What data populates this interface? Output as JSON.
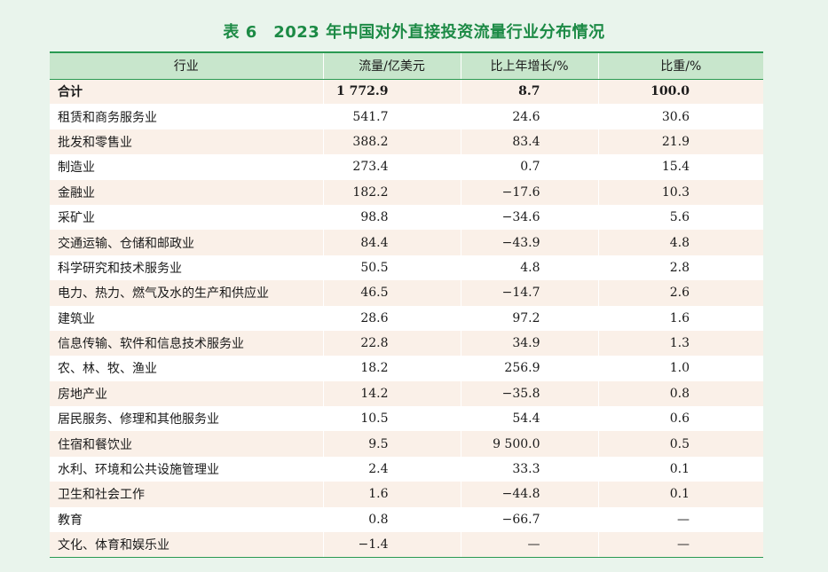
{
  "title": "表 6　2023 年中国对外直接投资流量行业分布情况",
  "headers": [
    "行业",
    "流量/亿美元",
    "比上年增长/%",
    "比重/%"
  ],
  "rows": [
    {
      "industry": "合计",
      "flow": "1 772.9",
      "growth": "8.7",
      "share": "100.0",
      "total": true
    },
    {
      "industry": "租赁和商务服务业",
      "flow": "541.7",
      "growth": "24.6",
      "share": "30.6"
    },
    {
      "industry": "批发和零售业",
      "flow": "388.2",
      "growth": "83.4",
      "share": "21.9"
    },
    {
      "industry": "制造业",
      "flow": "273.4",
      "growth": "0.7",
      "share": "15.4"
    },
    {
      "industry": "金融业",
      "flow": "182.2",
      "growth": "−17.6",
      "share": "10.3"
    },
    {
      "industry": "采矿业",
      "flow": "98.8",
      "growth": "−34.6",
      "share": "5.6"
    },
    {
      "industry": "交通运输、仓储和邮政业",
      "flow": "84.4",
      "growth": "−43.9",
      "share": "4.8"
    },
    {
      "industry": "科学研究和技术服务业",
      "flow": "50.5",
      "growth": "4.8",
      "share": "2.8"
    },
    {
      "industry": "电力、热力、燃气及水的生产和供应业",
      "flow": "46.5",
      "growth": "−14.7",
      "share": "2.6"
    },
    {
      "industry": "建筑业",
      "flow": "28.6",
      "growth": "97.2",
      "share": "1.6"
    },
    {
      "industry": "信息传输、软件和信息技术服务业",
      "flow": "22.8",
      "growth": "34.9",
      "share": "1.3"
    },
    {
      "industry": "农、林、牧、渔业",
      "flow": "18.2",
      "growth": "256.9",
      "share": "1.0"
    },
    {
      "industry": "房地产业",
      "flow": "14.2",
      "growth": "−35.8",
      "share": "0.8"
    },
    {
      "industry": "居民服务、修理和其他服务业",
      "flow": "10.5",
      "growth": "54.4",
      "share": "0.6"
    },
    {
      "industry": "住宿和餐饮业",
      "flow": "9.5",
      "growth": "9 500.0",
      "share": "0.5"
    },
    {
      "industry": "水利、环境和公共设施管理业",
      "flow": "2.4",
      "growth": "33.3",
      "share": "0.1"
    },
    {
      "industry": "卫生和社会工作",
      "flow": "1.6",
      "growth": "−44.8",
      "share": "0.1"
    },
    {
      "industry": "教育",
      "flow": "0.8",
      "growth": "−66.7",
      "share": "—"
    },
    {
      "industry": "文化、体育和娱乐业",
      "flow": "−1.4",
      "growth": "—",
      "share": "—"
    }
  ],
  "colors": {
    "title": "#1c8a45",
    "header_bg": "#c8e6cc",
    "rule": "#2a9a52",
    "row_tint": "#faf0e8",
    "page_bg": "#e9f4ec"
  }
}
